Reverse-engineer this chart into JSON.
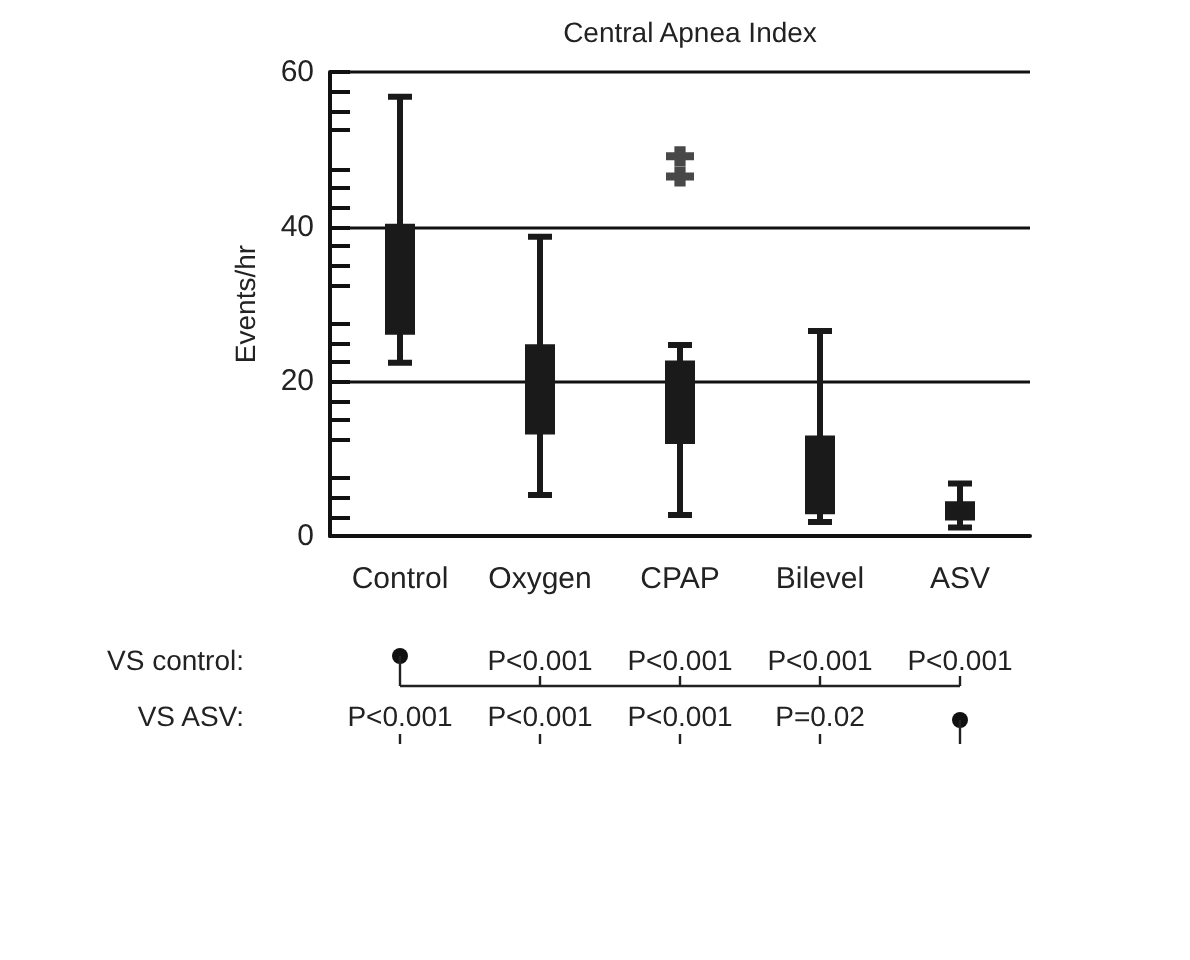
{
  "chart_data": {
    "type": "box",
    "title": "Central Apnea Index",
    "ylabel": "Events/hr",
    "categories": [
      "Control",
      "Oxygen",
      "CPAP",
      "Bilevel",
      "ASV"
    ],
    "boxes": [
      {
        "low": 22.4,
        "q1": 26.4,
        "median": 35.6,
        "q3": 40,
        "high": 56.8
      },
      {
        "low": 5.3,
        "q1": 13.5,
        "median": 18.2,
        "q3": 24.4,
        "high": 38.7
      },
      {
        "low": 2.7,
        "q1": 12.3,
        "median": 15.2,
        "q3": 22.3,
        "high": 24.7,
        "outliers": [
          49.1,
          46.5
        ]
      },
      {
        "low": 1.8,
        "q1": 3.2,
        "median": 6.7,
        "q3": 12.6,
        "high": 26.5
      },
      {
        "low": 1.1,
        "q1": 2.4,
        "median": 3.2,
        "q3": 4.1,
        "high": 6.8
      }
    ],
    "color": "#1a1a1a",
    "ylim": [
      0,
      60
    ],
    "yticks": [
      0,
      20,
      40,
      60
    ],
    "grid": "y",
    "legend": false,
    "annotations": [
      "VS control:",
      "P<0.001",
      "P<0.001",
      "P<0.001",
      "P<0.001",
      "VS ASV:",
      "P<0.001",
      "P<0.001",
      "P<0.001",
      "P=0.02"
    ]
  }
}
